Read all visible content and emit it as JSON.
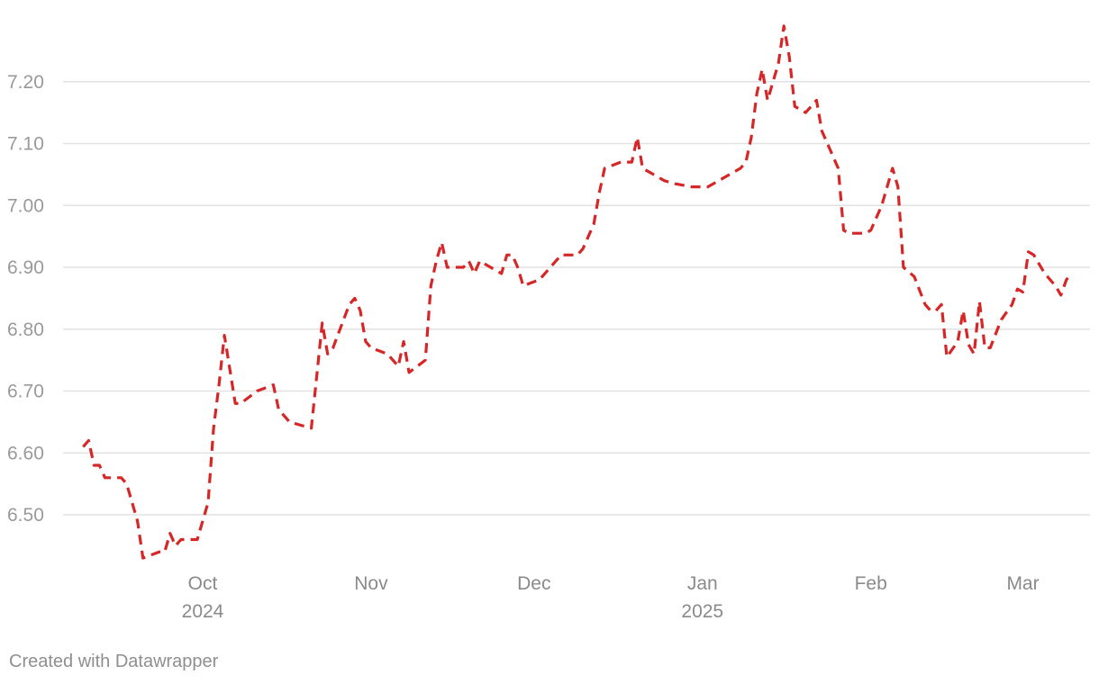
{
  "colors": {
    "line": "#d62728",
    "grid": "#e2e2e2"
  },
  "footer": {
    "credit": "Created with Datawrapper"
  },
  "chart_data": {
    "type": "line",
    "title": "",
    "xlabel": "",
    "ylabel": "",
    "ylim": [
      6.41,
      7.3
    ],
    "y_ticks": [
      "6.50",
      "6.60",
      "6.70",
      "6.80",
      "6.90",
      "7.00",
      "7.10",
      "7.20"
    ],
    "grid": true,
    "x_ticks": [
      {
        "date": "2024-10-01",
        "label": "Oct",
        "year": "2024"
      },
      {
        "date": "2024-11-01",
        "label": "Nov",
        "year": ""
      },
      {
        "date": "2024-12-01",
        "label": "Dec",
        "year": ""
      },
      {
        "date": "2025-01-01",
        "label": "Jan",
        "year": "2025"
      },
      {
        "date": "2025-02-01",
        "label": "Feb",
        "year": ""
      },
      {
        "date": "2025-03-01",
        "label": "Mar",
        "year": ""
      }
    ],
    "series": [
      {
        "color": "#d62728",
        "points": [
          [
            "2024-09-09",
            6.61
          ],
          [
            "2024-09-10",
            6.62
          ],
          [
            "2024-09-11",
            6.58
          ],
          [
            "2024-09-12",
            6.58
          ],
          [
            "2024-09-13",
            6.56
          ],
          [
            "2024-09-16",
            6.56
          ],
          [
            "2024-09-17",
            6.55
          ],
          [
            "2024-09-19",
            6.49
          ],
          [
            "2024-09-20",
            6.43
          ],
          [
            "2024-09-23",
            6.44
          ],
          [
            "2024-09-24",
            6.44
          ],
          [
            "2024-09-25",
            6.47
          ],
          [
            "2024-09-26",
            6.45
          ],
          [
            "2024-09-27",
            6.46
          ],
          [
            "2024-09-30",
            6.46
          ],
          [
            "2024-10-01",
            6.49
          ],
          [
            "2024-10-02",
            6.52
          ],
          [
            "2024-10-03",
            6.64
          ],
          [
            "2024-10-04",
            6.71
          ],
          [
            "2024-10-05",
            6.79
          ],
          [
            "2024-10-07",
            6.68
          ],
          [
            "2024-10-08",
            6.68
          ],
          [
            "2024-10-11",
            6.7
          ],
          [
            "2024-10-14",
            6.71
          ],
          [
            "2024-10-15",
            6.67
          ],
          [
            "2024-10-17",
            6.65
          ],
          [
            "2024-10-21",
            6.64
          ],
          [
            "2024-10-23",
            6.81
          ],
          [
            "2024-10-24",
            6.76
          ],
          [
            "2024-10-25",
            6.77
          ],
          [
            "2024-10-28",
            6.84
          ],
          [
            "2024-10-29",
            6.85
          ],
          [
            "2024-10-30",
            6.83
          ],
          [
            "2024-10-31",
            6.78
          ],
          [
            "2024-11-01",
            6.77
          ],
          [
            "2024-11-04",
            6.76
          ],
          [
            "2024-11-05",
            6.75
          ],
          [
            "2024-11-06",
            6.74
          ],
          [
            "2024-11-07",
            6.78
          ],
          [
            "2024-11-08",
            6.73
          ],
          [
            "2024-11-11",
            6.75
          ],
          [
            "2024-11-12",
            6.87
          ],
          [
            "2024-11-13",
            6.91
          ],
          [
            "2024-11-14",
            6.94
          ],
          [
            "2024-11-15",
            6.9
          ],
          [
            "2024-11-18",
            6.9
          ],
          [
            "2024-11-19",
            6.91
          ],
          [
            "2024-11-20",
            6.89
          ],
          [
            "2024-11-21",
            6.91
          ],
          [
            "2024-11-25",
            6.89
          ],
          [
            "2024-11-26",
            6.92
          ],
          [
            "2024-11-27",
            6.92
          ],
          [
            "2024-11-28",
            6.9
          ],
          [
            "2024-11-29",
            6.87
          ],
          [
            "2024-12-02",
            6.88
          ],
          [
            "2024-12-03",
            6.89
          ],
          [
            "2024-12-04",
            6.9
          ],
          [
            "2024-12-05",
            6.91
          ],
          [
            "2024-12-06",
            6.92
          ],
          [
            "2024-12-09",
            6.92
          ],
          [
            "2024-12-10",
            6.93
          ],
          [
            "2024-12-12",
            6.97
          ],
          [
            "2024-12-13",
            7.02
          ],
          [
            "2024-12-14",
            7.06
          ],
          [
            "2024-12-17",
            7.07
          ],
          [
            "2024-12-19",
            7.07
          ],
          [
            "2024-12-20",
            7.11
          ],
          [
            "2024-12-21",
            7.06
          ],
          [
            "2024-12-23",
            7.05
          ],
          [
            "2024-12-25",
            7.04
          ],
          [
            "2024-12-27",
            7.035
          ],
          [
            "2024-12-30",
            7.03
          ],
          [
            "2025-01-02",
            7.03
          ],
          [
            "2025-01-06",
            7.05
          ],
          [
            "2025-01-08",
            7.06
          ],
          [
            "2025-01-09",
            7.07
          ],
          [
            "2025-01-10",
            7.11
          ],
          [
            "2025-01-11",
            7.18
          ],
          [
            "2025-01-12",
            7.22
          ],
          [
            "2025-01-13",
            7.17
          ],
          [
            "2025-01-15",
            7.23
          ],
          [
            "2025-01-16",
            7.29
          ],
          [
            "2025-01-17",
            7.24
          ],
          [
            "2025-01-18",
            7.16
          ],
          [
            "2025-01-20",
            7.15
          ],
          [
            "2025-01-21",
            7.16
          ],
          [
            "2025-01-22",
            7.17
          ],
          [
            "2025-01-23",
            7.12
          ],
          [
            "2025-01-24",
            7.1
          ],
          [
            "2025-01-26",
            7.06
          ],
          [
            "2025-01-27",
            6.96
          ],
          [
            "2025-01-28",
            6.955
          ],
          [
            "2025-01-31",
            6.955
          ],
          [
            "2025-02-01",
            6.96
          ],
          [
            "2025-02-03",
            7.0
          ],
          [
            "2025-02-05",
            7.06
          ],
          [
            "2025-02-06",
            7.03
          ],
          [
            "2025-02-07",
            6.9
          ],
          [
            "2025-02-09",
            6.885
          ],
          [
            "2025-02-11",
            6.84
          ],
          [
            "2025-02-12",
            6.83
          ],
          [
            "2025-02-13",
            6.83
          ],
          [
            "2025-02-14",
            6.84
          ],
          [
            "2025-02-15",
            6.755
          ],
          [
            "2025-02-17",
            6.78
          ],
          [
            "2025-02-18",
            6.83
          ],
          [
            "2025-02-19",
            6.775
          ],
          [
            "2025-02-20",
            6.76
          ],
          [
            "2025-02-21",
            6.845
          ],
          [
            "2025-02-22",
            6.77
          ],
          [
            "2025-02-23",
            6.77
          ],
          [
            "2025-02-25",
            6.815
          ],
          [
            "2025-02-27",
            6.84
          ],
          [
            "2025-02-28",
            6.865
          ],
          [
            "2025-03-01",
            6.86
          ],
          [
            "2025-03-02",
            6.925
          ],
          [
            "2025-03-03",
            6.92
          ],
          [
            "2025-03-05",
            6.89
          ],
          [
            "2025-03-07",
            6.87
          ],
          [
            "2025-03-08",
            6.855
          ],
          [
            "2025-03-09",
            6.88
          ],
          [
            "2025-03-10",
            6.89
          ]
        ]
      }
    ]
  }
}
